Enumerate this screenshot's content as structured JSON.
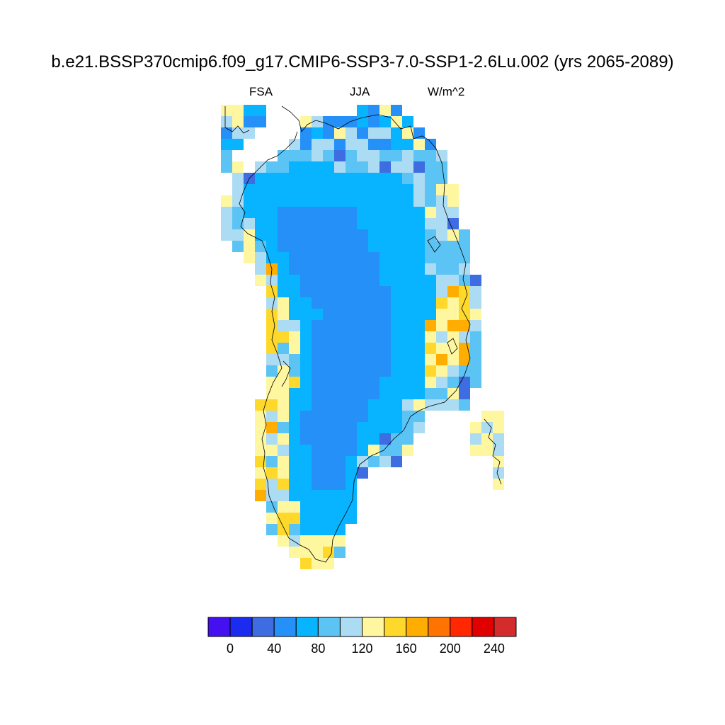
{
  "title": "b.e21.BSSP370cmip6.f09_g17.CMIP6-SSP3-7.0-SSP1-2.6Lu.002 (yrs 2065-2089)",
  "left_string": "FSA",
  "center_string": "JJA",
  "right_string": "W/m^2",
  "colorbar": {
    "colors": [
      "#4410f0",
      "#1b2cf0",
      "#3d6de0",
      "#2490f8",
      "#08b4ff",
      "#5cc4f4",
      "#acdcf4",
      "#fff7a0",
      "#ffd82c",
      "#ffad00",
      "#ff7400",
      "#ff2800",
      "#e00000",
      "#d42c2c"
    ],
    "labels": [
      "0",
      "40",
      "80",
      "120",
      "160",
      "200",
      "240"
    ]
  }
}
